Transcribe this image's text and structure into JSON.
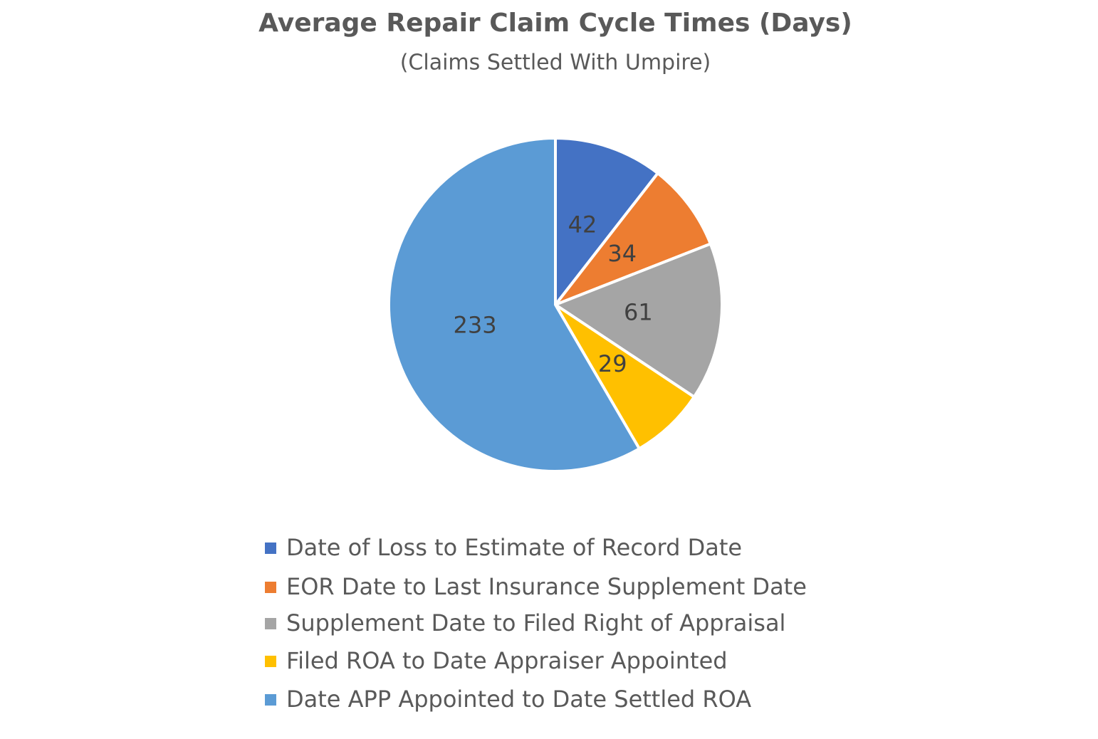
{
  "chart_data": {
    "type": "pie",
    "title": "Average Repair Claim Cycle Times (Days)",
    "subtitle": "(Claims Settled With Umpire)",
    "categories": [
      "Date of Loss to Estimate of Record Date",
      "EOR Date to Last Insurance Supplement Date",
      "Supplement Date to Filed Right of Appraisal",
      "Filed ROA to Date Appraiser Appointed",
      "Date APP Appointed to Date Settled ROA"
    ],
    "values": [
      42,
      34,
      61,
      29,
      233
    ],
    "colors": [
      "#4472c4",
      "#ed7d31",
      "#a5a5a5",
      "#ffc000",
      "#5b9bd5"
    ],
    "legend": "bottom"
  }
}
